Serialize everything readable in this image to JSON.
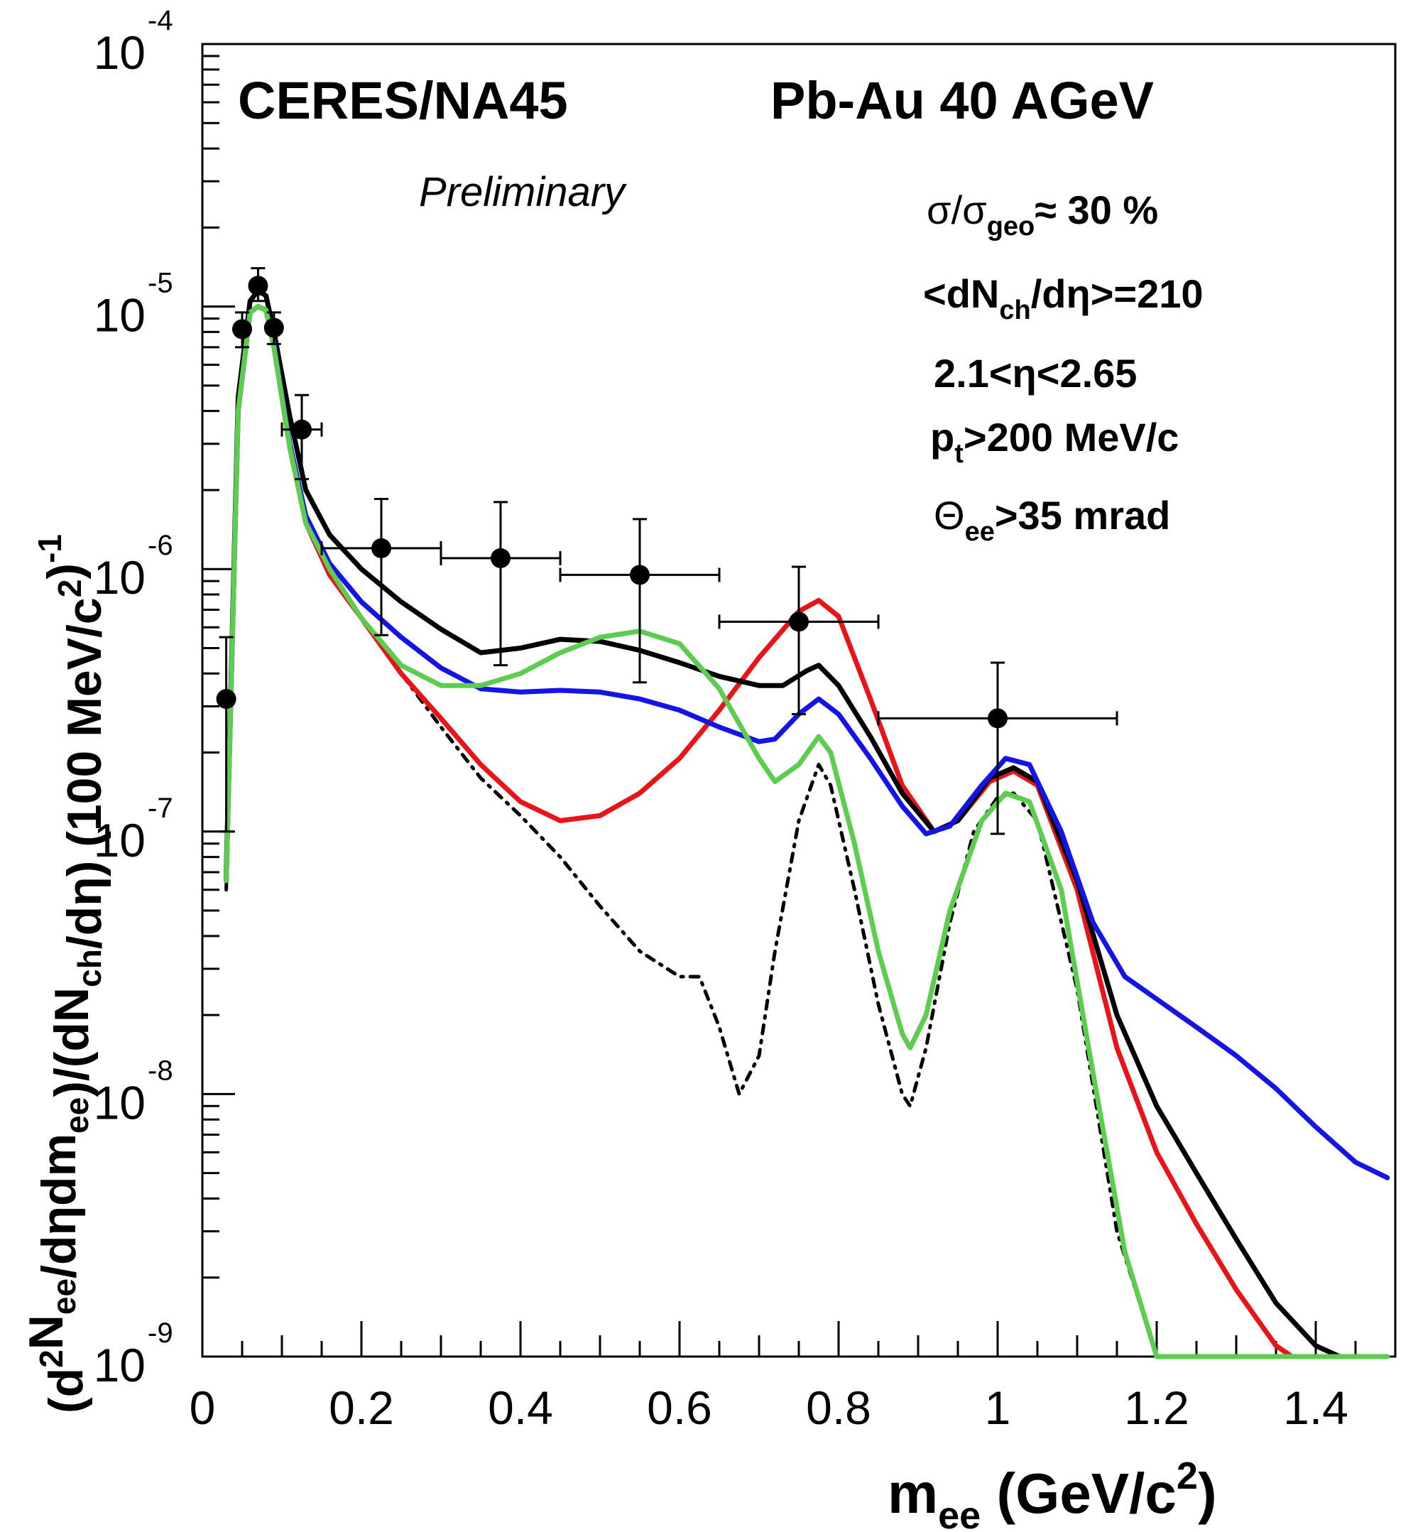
{
  "chart_data": {
    "type": "line",
    "title": "",
    "experiment": "CERES/NA45",
    "system": "Pb-Au 40 AGeV",
    "status": "Preliminary",
    "cuts": {
      "centrality": {
        "sym": "σ/σ",
        "sub": "geo",
        "post": "≈ 30 %"
      },
      "multiplicity": {
        "pre": "<dN",
        "sub": "ch",
        "post": "/dη>=210"
      },
      "eta": {
        "text": "2.1<η<2.65"
      },
      "pt": {
        "pre": "p",
        "sub": "t",
        "post": ">200 MeV/c"
      },
      "theta": {
        "pre": "Θ",
        "sub": "ee",
        "post": ">35 mrad"
      }
    },
    "xlabel": {
      "pre": "m",
      "sub": "ee",
      "mid": " (GeV/c",
      "sup": "2",
      "post": ")"
    },
    "ylabel": {
      "parts": [
        {
          "t": "(d",
          "k": "n"
        },
        {
          "t": "2",
          "k": "sup"
        },
        {
          "t": "N",
          "k": "n"
        },
        {
          "t": "ee",
          "k": "sub"
        },
        {
          "t": "/dηdm",
          "k": "n"
        },
        {
          "t": "ee",
          "k": "sub"
        },
        {
          "t": ")/(dN",
          "k": "n"
        },
        {
          "t": "ch",
          "k": "sub"
        },
        {
          "t": "/dη) (100 MeV/c",
          "k": "n"
        },
        {
          "t": "2",
          "k": "sup"
        },
        {
          "t": ")",
          "k": "n"
        },
        {
          "t": "-1",
          "k": "sup"
        }
      ]
    },
    "xlim": [
      0,
      1.5
    ],
    "ylim": [
      1e-09,
      0.0001
    ],
    "yscale": "log",
    "xticks": [
      {
        "v": 0,
        "label": "0"
      },
      {
        "v": 0.2,
        "label": "0.2"
      },
      {
        "v": 0.4,
        "label": "0.4"
      },
      {
        "v": 0.6,
        "label": "0.6"
      },
      {
        "v": 0.8,
        "label": "0.8"
      },
      {
        "v": 1.0,
        "label": "1"
      },
      {
        "v": 1.2,
        "label": "1.2"
      },
      {
        "v": 1.4,
        "label": "1.4"
      }
    ],
    "yticks": [
      {
        "v": 0.0001,
        "base": "10",
        "exp": "-4"
      },
      {
        "v": 1e-05,
        "base": "10",
        "exp": "-5"
      },
      {
        "v": 1e-06,
        "base": "10",
        "exp": "-6"
      },
      {
        "v": 1e-07,
        "base": "10",
        "exp": "-7"
      },
      {
        "v": 1e-08,
        "base": "10",
        "exp": "-8"
      },
      {
        "v": 1e-09,
        "base": "10",
        "exp": "-9"
      }
    ],
    "grid": false,
    "data_points": [
      {
        "x": 0.03,
        "y": 3.2e-07,
        "xerr": 0,
        "yerr_lo": 1e-07,
        "yerr_hi": 5.5e-07
      },
      {
        "x": 0.05,
        "y": 8.2e-06,
        "xerr": 0,
        "yerr_lo": 7e-06,
        "yerr_hi": 9.5e-06
      },
      {
        "x": 0.07,
        "y": 1.2e-05,
        "xerr": 0,
        "yerr_lo": 1.05e-05,
        "yerr_hi": 1.4e-05
      },
      {
        "x": 0.09,
        "y": 8.3e-06,
        "xerr": 0,
        "yerr_lo": 7.2e-06,
        "yerr_hi": 9.5e-06
      },
      {
        "x": 0.125,
        "y": 3.4e-06,
        "xerr": 0.025,
        "yerr_lo": 2.2e-06,
        "yerr_hi": 4.6e-06
      },
      {
        "x": 0.225,
        "y": 1.2e-06,
        "xerr": 0.075,
        "yerr_lo": 5.6e-07,
        "yerr_hi": 1.85e-06
      },
      {
        "x": 0.375,
        "y": 1.1e-06,
        "xerr": 0.075,
        "yerr_lo": 4.3e-07,
        "yerr_hi": 1.8e-06
      },
      {
        "x": 0.55,
        "y": 9.5e-07,
        "xerr": 0.1,
        "yerr_lo": 3.7e-07,
        "yerr_hi": 1.55e-06
      },
      {
        "x": 0.75,
        "y": 6.3e-07,
        "xerr": 0.1,
        "yerr_lo": 2.8e-07,
        "yerr_hi": 1.02e-06
      },
      {
        "x": 1.0,
        "y": 2.7e-07,
        "xerr": 0.15,
        "yerr_lo": 9.8e-08,
        "yerr_hi": 4.4e-07
      }
    ],
    "series": [
      {
        "color": "#000000",
        "style": "dashdot",
        "points": [
          [
            0.03,
            6e-08
          ],
          [
            0.045,
            4e-06
          ],
          [
            0.06,
            9.5e-06
          ],
          [
            0.07,
            1e-05
          ],
          [
            0.08,
            9.7e-06
          ],
          [
            0.09,
            7e-06
          ],
          [
            0.11,
            2.8e-06
          ],
          [
            0.13,
            1.5e-06
          ],
          [
            0.16,
            1e-06
          ],
          [
            0.2,
            6.5e-07
          ],
          [
            0.25,
            4e-07
          ],
          [
            0.3,
            2.5e-07
          ],
          [
            0.35,
            1.6e-07
          ],
          [
            0.4,
            1.15e-07
          ],
          [
            0.45,
            8e-08
          ],
          [
            0.5,
            5.2e-08
          ],
          [
            0.55,
            3.5e-08
          ],
          [
            0.6,
            2.8e-08
          ],
          [
            0.6,
            2.8e-08
          ],
          [
            0.625,
            2.8e-08
          ],
          [
            0.65,
            1.8e-08
          ],
          [
            0.675,
            1e-08
          ],
          [
            0.7,
            1.4e-08
          ],
          [
            0.72,
            3.5e-08
          ],
          [
            0.75,
            1.1e-07
          ],
          [
            0.775,
            1.8e-07
          ],
          [
            0.79,
            1.5e-07
          ],
          [
            0.82,
            6e-08
          ],
          [
            0.85,
            2.2e-08
          ],
          [
            0.88,
            1e-08
          ],
          [
            0.89,
            9e-09
          ],
          [
            0.91,
            1.5e-08
          ],
          [
            0.94,
            4.5e-08
          ],
          [
            0.97,
            1e-07
          ],
          [
            1.0,
            1.35e-07
          ],
          [
            1.02,
            1.4e-07
          ],
          [
            1.05,
            1.1e-07
          ],
          [
            1.1,
            2.5e-08
          ],
          [
            1.15,
            3e-09
          ],
          [
            1.2,
            1e-09
          ]
        ]
      },
      {
        "color": "#e8141a",
        "style": "solid",
        "points": [
          [
            0.03,
            6.5e-08
          ],
          [
            0.045,
            4e-06
          ],
          [
            0.06,
            9.5e-06
          ],
          [
            0.07,
            1e-05
          ],
          [
            0.08,
            9.7e-06
          ],
          [
            0.09,
            7e-06
          ],
          [
            0.11,
            2.9e-06
          ],
          [
            0.13,
            1.5e-06
          ],
          [
            0.16,
            9.5e-07
          ],
          [
            0.2,
            6.5e-07
          ],
          [
            0.25,
            4e-07
          ],
          [
            0.3,
            2.7e-07
          ],
          [
            0.35,
            1.8e-07
          ],
          [
            0.4,
            1.3e-07
          ],
          [
            0.45,
            1.1e-07
          ],
          [
            0.5,
            1.15e-07
          ],
          [
            0.55,
            1.4e-07
          ],
          [
            0.6,
            1.9e-07
          ],
          [
            0.65,
            2.9e-07
          ],
          [
            0.7,
            4.6e-07
          ],
          [
            0.75,
            6.9e-07
          ],
          [
            0.775,
            7.6e-07
          ],
          [
            0.8,
            6.6e-07
          ],
          [
            0.84,
            3.2e-07
          ],
          [
            0.88,
            1.5e-07
          ],
          [
            0.92,
            1e-07
          ],
          [
            0.95,
            1.1e-07
          ],
          [
            0.99,
            1.55e-07
          ],
          [
            1.02,
            1.7e-07
          ],
          [
            1.05,
            1.5e-07
          ],
          [
            1.1,
            6e-08
          ],
          [
            1.15,
            1.5e-08
          ],
          [
            1.2,
            6e-09
          ],
          [
            1.25,
            3.2e-09
          ],
          [
            1.3,
            1.8e-09
          ],
          [
            1.35,
            1.1e-09
          ],
          [
            1.37,
            1e-09
          ]
        ]
      },
      {
        "color": "#000000",
        "style": "solid",
        "points": [
          [
            0.03,
            7e-08
          ],
          [
            0.045,
            4.5e-06
          ],
          [
            0.06,
            1.05e-05
          ],
          [
            0.07,
            1.15e-05
          ],
          [
            0.08,
            1.1e-05
          ],
          [
            0.09,
            8e-06
          ],
          [
            0.11,
            3.8e-06
          ],
          [
            0.13,
            2e-06
          ],
          [
            0.16,
            1.35e-06
          ],
          [
            0.2,
            1e-06
          ],
          [
            0.25,
            7.5e-07
          ],
          [
            0.3,
            5.9e-07
          ],
          [
            0.35,
            4.8e-07
          ],
          [
            0.4,
            5e-07
          ],
          [
            0.45,
            5.4e-07
          ],
          [
            0.5,
            5.3e-07
          ],
          [
            0.55,
            4.9e-07
          ],
          [
            0.6,
            4.4e-07
          ],
          [
            0.65,
            3.9e-07
          ],
          [
            0.7,
            3.6e-07
          ],
          [
            0.73,
            3.6e-07
          ],
          [
            0.76,
            4.1e-07
          ],
          [
            0.775,
            4.3e-07
          ],
          [
            0.8,
            3.6e-07
          ],
          [
            0.84,
            2.3e-07
          ],
          [
            0.88,
            1.4e-07
          ],
          [
            0.92,
            1e-07
          ],
          [
            0.95,
            1.1e-07
          ],
          [
            0.99,
            1.6e-07
          ],
          [
            1.02,
            1.75e-07
          ],
          [
            1.05,
            1.55e-07
          ],
          [
            1.1,
            6.5e-08
          ],
          [
            1.15,
            2e-08
          ],
          [
            1.2,
            9e-09
          ],
          [
            1.25,
            5e-09
          ],
          [
            1.3,
            2.8e-09
          ],
          [
            1.35,
            1.6e-09
          ],
          [
            1.4,
            1.1e-09
          ],
          [
            1.43,
            1e-09
          ]
        ]
      },
      {
        "color": "#1414e6",
        "style": "solid",
        "points": [
          [
            0.03,
            6.5e-08
          ],
          [
            0.045,
            4e-06
          ],
          [
            0.06,
            9.5e-06
          ],
          [
            0.07,
            1e-05
          ],
          [
            0.08,
            9.7e-06
          ],
          [
            0.09,
            7.2e-06
          ],
          [
            0.11,
            3e-06
          ],
          [
            0.13,
            1.6e-06
          ],
          [
            0.16,
            1.05e-06
          ],
          [
            0.2,
            7.5e-07
          ],
          [
            0.25,
            5.5e-07
          ],
          [
            0.3,
            4.2e-07
          ],
          [
            0.35,
            3.5e-07
          ],
          [
            0.4,
            3.4e-07
          ],
          [
            0.45,
            3.45e-07
          ],
          [
            0.5,
            3.4e-07
          ],
          [
            0.55,
            3.2e-07
          ],
          [
            0.6,
            2.9e-07
          ],
          [
            0.65,
            2.5e-07
          ],
          [
            0.7,
            2.2e-07
          ],
          [
            0.72,
            2.25e-07
          ],
          [
            0.75,
            2.8e-07
          ],
          [
            0.775,
            3.2e-07
          ],
          [
            0.8,
            2.8e-07
          ],
          [
            0.84,
            1.9e-07
          ],
          [
            0.88,
            1.25e-07
          ],
          [
            0.91,
            9.8e-08
          ],
          [
            0.94,
            1.05e-07
          ],
          [
            0.98,
            1.5e-07
          ],
          [
            1.01,
            1.9e-07
          ],
          [
            1.04,
            1.8e-07
          ],
          [
            1.08,
            1e-07
          ],
          [
            1.12,
            4.5e-08
          ],
          [
            1.16,
            2.8e-08
          ],
          [
            1.2,
            2.3e-08
          ],
          [
            1.25,
            1.8e-08
          ],
          [
            1.3,
            1.4e-08
          ],
          [
            1.35,
            1.05e-08
          ],
          [
            1.4,
            7.5e-09
          ],
          [
            1.45,
            5.5e-09
          ],
          [
            1.49,
            4.8e-09
          ]
        ]
      },
      {
        "color": "#5ccd4f",
        "style": "solid",
        "points": [
          [
            0.03,
            6.5e-08
          ],
          [
            0.045,
            4e-06
          ],
          [
            0.06,
            9.5e-06
          ],
          [
            0.07,
            1e-05
          ],
          [
            0.08,
            9.7e-06
          ],
          [
            0.09,
            7e-06
          ],
          [
            0.11,
            2.9e-06
          ],
          [
            0.13,
            1.5e-06
          ],
          [
            0.16,
            1e-06
          ],
          [
            0.2,
            6.5e-07
          ],
          [
            0.25,
            4.3e-07
          ],
          [
            0.3,
            3.6e-07
          ],
          [
            0.35,
            3.6e-07
          ],
          [
            0.4,
            4e-07
          ],
          [
            0.45,
            4.8e-07
          ],
          [
            0.5,
            5.5e-07
          ],
          [
            0.55,
            5.8e-07
          ],
          [
            0.6,
            5.2e-07
          ],
          [
            0.65,
            3.5e-07
          ],
          [
            0.7,
            1.9e-07
          ],
          [
            0.72,
            1.55e-07
          ],
          [
            0.75,
            1.8e-07
          ],
          [
            0.775,
            2.3e-07
          ],
          [
            0.79,
            2e-07
          ],
          [
            0.82,
            9e-08
          ],
          [
            0.85,
            3.5e-08
          ],
          [
            0.88,
            1.7e-08
          ],
          [
            0.89,
            1.5e-08
          ],
          [
            0.91,
            2e-08
          ],
          [
            0.94,
            5e-08
          ],
          [
            0.98,
            1.1e-07
          ],
          [
            1.01,
            1.4e-07
          ],
          [
            1.04,
            1.3e-07
          ],
          [
            1.08,
            6e-08
          ],
          [
            1.12,
            1.2e-08
          ],
          [
            1.16,
            2.5e-09
          ],
          [
            1.2,
            1e-09
          ],
          [
            1.3,
            1e-09
          ],
          [
            1.4,
            1e-09
          ],
          [
            1.49,
            1e-09
          ]
        ]
      }
    ]
  }
}
